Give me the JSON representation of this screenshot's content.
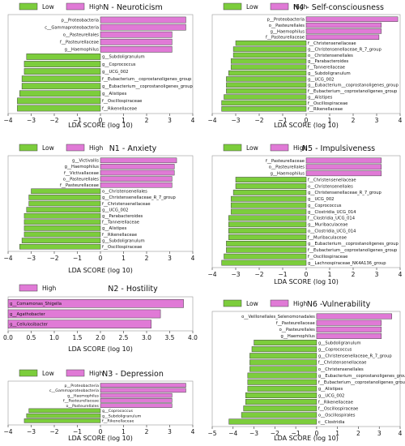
{
  "colors": {
    "low": "#7ccd3c",
    "high": "#e07ad6",
    "edge": "#444444",
    "panel_bg": "#ffffff"
  },
  "chart_data": [
    {
      "type": "bar",
      "title": "N - Neuroticism",
      "legend": [
        "Low",
        "High"
      ],
      "xlabel": "LDA SCORE (log 10)",
      "xlim": [
        -4,
        4
      ],
      "xticks": [
        -4,
        -3,
        -2,
        -1,
        0,
        1,
        2,
        3,
        4
      ],
      "bars": [
        {
          "label": "p__Proteobacteria",
          "value": 3.7,
          "group": "High"
        },
        {
          "label": "c__Gammaproteobacteria",
          "value": 3.7,
          "group": "High"
        },
        {
          "label": "o__Pasteurellales",
          "value": 3.1,
          "group": "High"
        },
        {
          "label": "f__Pasteurellaceae",
          "value": 3.1,
          "group": "High"
        },
        {
          "label": "g__Haemophilus",
          "value": 3.1,
          "group": "High"
        },
        {
          "label": "g__Subdoligranulum",
          "value": -3.2,
          "group": "Low"
        },
        {
          "label": "g__Coprococcus",
          "value": -3.3,
          "group": "Low"
        },
        {
          "label": "g__UCG_002",
          "value": -3.3,
          "group": "Low"
        },
        {
          "label": "f__Eubacterium__coprostanoligenes_group",
          "value": -3.4,
          "group": "Low"
        },
        {
          "label": "g__Eubacterium__coprostanoligenes_group",
          "value": -3.4,
          "group": "Low"
        },
        {
          "label": "g__Alistipes",
          "value": -3.5,
          "group": "Low"
        },
        {
          "label": "f__Oscillospiraceae",
          "value": -3.6,
          "group": "Low"
        },
        {
          "label": "f__Rikenellaceae",
          "value": -3.6,
          "group": "Low"
        }
      ]
    },
    {
      "type": "bar",
      "title": "N4 - Self-consciousness",
      "legend": [
        "Low",
        "High"
      ],
      "xlabel": "LDA SCORE (log 10)",
      "xlim": [
        -4,
        4
      ],
      "xticks": [
        -4,
        -3,
        -2,
        -1,
        0,
        1,
        2,
        3,
        4
      ],
      "bars": [
        {
          "label": "p__Proteobacteria",
          "value": 3.9,
          "group": "High"
        },
        {
          "label": "o__Pasteurellales",
          "value": 3.2,
          "group": "High"
        },
        {
          "label": "g__Haemophilus",
          "value": 3.2,
          "group": "High"
        },
        {
          "label": "f__Pasteurellaceae",
          "value": 3.1,
          "group": "High"
        },
        {
          "label": "f__Christensenellaceae",
          "value": -3.0,
          "group": "Low"
        },
        {
          "label": "g__Christensenellaceae_R_7_group",
          "value": -3.1,
          "group": "Low"
        },
        {
          "label": "o__Christensenellales",
          "value": -3.1,
          "group": "Low"
        },
        {
          "label": "g__Parabacteroides",
          "value": -3.2,
          "group": "Low"
        },
        {
          "label": "f__Tannerellaceae",
          "value": -3.2,
          "group": "Low"
        },
        {
          "label": "g__Subdoligranulum",
          "value": -3.3,
          "group": "Low"
        },
        {
          "label": "g__UCG_002",
          "value": -3.4,
          "group": "Low"
        },
        {
          "label": "g__Eubacterium__coprostanoligenes_group",
          "value": -3.4,
          "group": "Low"
        },
        {
          "label": "f__Eubacterium__coprostanoligenes_group",
          "value": -3.4,
          "group": "Low"
        },
        {
          "label": "g__Alistipes",
          "value": -3.5,
          "group": "Low"
        },
        {
          "label": "f__Oscillospiraceae",
          "value": -3.6,
          "group": "Low"
        },
        {
          "label": "f__Rikenellaceae",
          "value": -3.6,
          "group": "Low"
        }
      ]
    },
    {
      "type": "bar",
      "title": "N1 - Anxiety",
      "legend": [
        "Low",
        "High"
      ],
      "xlabel": "LDA SCORE (log 10)",
      "xlim": [
        -4,
        4
      ],
      "xticks": [
        -4,
        -3,
        -2,
        -1,
        0,
        1,
        2,
        3,
        4
      ],
      "bars": [
        {
          "label": "g__Victivallis",
          "value": 3.3,
          "group": "High"
        },
        {
          "label": "g__Haemophilus",
          "value": 3.2,
          "group": "High"
        },
        {
          "label": "f__Victivallaceae",
          "value": 3.2,
          "group": "High"
        },
        {
          "label": "o__Pasteurellales",
          "value": 3.1,
          "group": "High"
        },
        {
          "label": "f__Pasteurellaceae",
          "value": 3.1,
          "group": "High"
        },
        {
          "label": "o__Christensenellales",
          "value": -3.0,
          "group": "Low"
        },
        {
          "label": "g__Christensenellaceae_R_7_group",
          "value": -3.1,
          "group": "Low"
        },
        {
          "label": "f__Christensenellaceae",
          "value": -3.1,
          "group": "Low"
        },
        {
          "label": "g__UCG_002",
          "value": -3.2,
          "group": "Low"
        },
        {
          "label": "g__Parabacteroides",
          "value": -3.3,
          "group": "Low"
        },
        {
          "label": "f__Tannerellaceae",
          "value": -3.3,
          "group": "Low"
        },
        {
          "label": "g__Alistipes",
          "value": -3.3,
          "group": "Low"
        },
        {
          "label": "f__Rikenellaceae",
          "value": -3.3,
          "group": "Low"
        },
        {
          "label": "g__Subdoligranulum",
          "value": -3.4,
          "group": "Low"
        },
        {
          "label": "f__Oscillospiraceae",
          "value": -3.5,
          "group": "Low"
        }
      ]
    },
    {
      "type": "bar",
      "title": "N5 - Impulsiveness",
      "legend": [
        "Low",
        "High"
      ],
      "xlabel": "LDA SCORE (log 10)",
      "xlim": [
        -4,
        4
      ],
      "xticks": [
        -4,
        -3,
        -2,
        -1,
        0,
        1,
        2,
        3,
        4
      ],
      "bars": [
        {
          "label": "f__Pasteurellaceae",
          "value": 3.2,
          "group": "High"
        },
        {
          "label": "o__Pasteurellales",
          "value": 3.2,
          "group": "High"
        },
        {
          "label": "g__Haemophilus",
          "value": 3.2,
          "group": "High"
        },
        {
          "label": "f__Christensenellaceae",
          "value": -3.0,
          "group": "Low"
        },
        {
          "label": "o__Christensenellales",
          "value": -3.0,
          "group": "Low"
        },
        {
          "label": "g__Christensenellaceae_R_7_group",
          "value": -3.1,
          "group": "Low"
        },
        {
          "label": "g__UCG_002",
          "value": -3.2,
          "group": "Low"
        },
        {
          "label": "g__Coprococcus",
          "value": -3.2,
          "group": "Low"
        },
        {
          "label": "g__Clostridia_UCG_014",
          "value": -3.2,
          "group": "Low"
        },
        {
          "label": "f__Clostridia_UCG_014",
          "value": -3.3,
          "group": "Low"
        },
        {
          "label": "g__Muribaculaceae",
          "value": -3.3,
          "group": "Low"
        },
        {
          "label": "o__Clostridia_UCG_014",
          "value": -3.3,
          "group": "Low"
        },
        {
          "label": "f__Muribaculaceae",
          "value": -3.3,
          "group": "Low"
        },
        {
          "label": "g__Eubacterium__coprostanoligenes_group",
          "value": -3.4,
          "group": "Low"
        },
        {
          "label": "f__Eubacterium__coprostanoligenes_group",
          "value": -3.4,
          "group": "Low"
        },
        {
          "label": "f__Oscillospiraceae",
          "value": -3.5,
          "group": "Low"
        },
        {
          "label": "g__Lachnospiraceae_NK4A136_group",
          "value": -3.6,
          "group": "Low"
        }
      ]
    },
    {
      "type": "bar",
      "title": "N2 - Hostility",
      "legend": [
        "High"
      ],
      "xlabel": "LDA SCORE (log 10)",
      "xlim": [
        0,
        4
      ],
      "xticks": [
        0.0,
        0.5,
        1.0,
        1.5,
        2.0,
        2.5,
        3.0,
        3.5,
        4.0
      ],
      "tick_format": 1,
      "bars": [
        {
          "label": "g__Comamonas_Shigella",
          "value": 3.8,
          "group": "High"
        },
        {
          "label": "g__Agathobacter",
          "value": 3.3,
          "group": "High"
        },
        {
          "label": "g__Cellulosibacter",
          "value": 3.1,
          "group": "High"
        }
      ]
    },
    {
      "type": "bar",
      "title": "N6 -Vulnerability",
      "legend": [
        "Low",
        "High"
      ],
      "xlabel": "LDA SCORE (log 10)",
      "xlim": [
        -5,
        4
      ],
      "xticks": [
        -5,
        -4,
        -3,
        -2,
        -1,
        0,
        1,
        2,
        3,
        4
      ],
      "bars": [
        {
          "label": "o__Veillonellales_Selenomonadales",
          "value": 3.6,
          "group": "High"
        },
        {
          "label": "f__Pasteurellaceae",
          "value": 3.1,
          "group": "High"
        },
        {
          "label": "o__Pasteurellales",
          "value": 3.1,
          "group": "High"
        },
        {
          "label": "g__Haemophilus",
          "value": 3.1,
          "group": "High"
        },
        {
          "label": "g__Subdoligranulum",
          "value": -3.0,
          "group": "Low"
        },
        {
          "label": "g__Coprococcus",
          "value": -3.1,
          "group": "Low"
        },
        {
          "label": "g__Christensenellaceae_R_7_group",
          "value": -3.2,
          "group": "Low"
        },
        {
          "label": "f__Christensenellaceae",
          "value": -3.2,
          "group": "Low"
        },
        {
          "label": "o__Christensenellales",
          "value": -3.2,
          "group": "Low"
        },
        {
          "label": "g__Eubacterium__coprostanoligenes_group",
          "value": -3.3,
          "group": "Low"
        },
        {
          "label": "f__Eubacterium__coprostanoligenes_group",
          "value": -3.3,
          "group": "Low"
        },
        {
          "label": "g__Alistipes",
          "value": -3.3,
          "group": "Low"
        },
        {
          "label": "g__UCG_002",
          "value": -3.4,
          "group": "Low"
        },
        {
          "label": "f__Rikenellaceae",
          "value": -3.4,
          "group": "Low"
        },
        {
          "label": "f__Oscillospiraceae",
          "value": -3.5,
          "group": "Low"
        },
        {
          "label": "o__Oscillospirales",
          "value": -3.6,
          "group": "Low"
        },
        {
          "label": "c__Clostridia",
          "value": -4.2,
          "group": "Low"
        }
      ]
    },
    {
      "type": "bar",
      "title": "N3 - Depression",
      "legend": [
        "Low",
        "High"
      ],
      "xlabel": "LDA SCORE (log 10)",
      "xlim": [
        -4,
        4
      ],
      "xticks": [
        -4,
        -3,
        -2,
        -1,
        0,
        1,
        2,
        3,
        4
      ],
      "bars": [
        {
          "label": "p__Proteobacteria",
          "value": 3.7,
          "group": "High"
        },
        {
          "label": "c__Gammaproteobacteria",
          "value": 3.7,
          "group": "High"
        },
        {
          "label": "g__Haemophilus",
          "value": 3.1,
          "group": "High"
        },
        {
          "label": "f__Pasteurellaceae",
          "value": 3.1,
          "group": "High"
        },
        {
          "label": "o__Pasteurellales",
          "value": 3.1,
          "group": "High"
        },
        {
          "label": "g__Coprococcus",
          "value": -3.1,
          "group": "Low"
        },
        {
          "label": "g__Subdoligranulum",
          "value": -3.2,
          "group": "Low"
        },
        {
          "label": "f__Rikenellaceae",
          "value": -3.3,
          "group": "Low"
        }
      ]
    }
  ]
}
